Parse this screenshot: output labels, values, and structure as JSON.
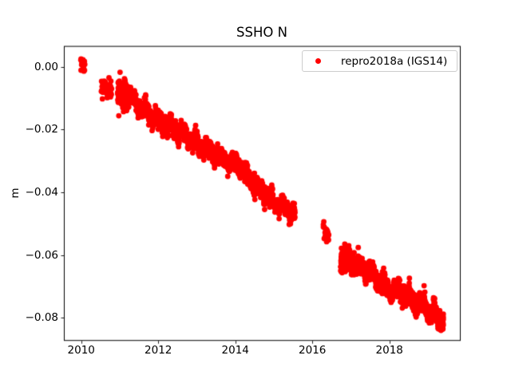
{
  "figure": {
    "background_color": "#ffffff",
    "text_color": "#000000",
    "spine_color": "#000000"
  },
  "chart_data": {
    "type": "scatter",
    "title": "SSHO N",
    "xlabel": "",
    "ylabel": "m",
    "grid": false,
    "legend_position": "upper right",
    "legend": [
      {
        "label": "repro2018a (IGS14)",
        "marker": "dot",
        "color": "#ff0000"
      }
    ],
    "xlim": [
      2009.55,
      2019.83
    ],
    "ylim": [
      -0.0874,
      0.0067
    ],
    "xticks": [
      2010,
      2012,
      2014,
      2016,
      2018
    ],
    "xtick_labels": [
      "2010",
      "2012",
      "2014",
      "2016",
      "2018"
    ],
    "yticks": [
      0.0,
      -0.02,
      -0.04,
      -0.06,
      -0.08
    ],
    "ytick_labels": [
      "0.00",
      "−0.02",
      "−0.04",
      "−0.06",
      "−0.08"
    ],
    "marker": {
      "shape": "circle",
      "color": "#ff0000",
      "radius_px": 3.4
    },
    "series": [
      {
        "name": "repro2018a (IGS14)",
        "color": "#ff0000",
        "units": "m",
        "description": "Daily north-component position residuals; rendered from segment envelopes read off the plot.",
        "segments": [
          {
            "t_start": 2009.99,
            "t_end": 2010.11,
            "n": 16,
            "anchors": [
              [
                2009.99,
                0.0015
              ],
              [
                2010.11,
                0.0003
              ]
            ],
            "sigma": 0.0011,
            "wiggle": 0
          },
          {
            "t_start": 2010.52,
            "t_end": 2010.79,
            "n": 55,
            "anchors": [
              [
                2010.52,
                -0.0062
              ],
              [
                2010.79,
                -0.008
              ]
            ],
            "sigma": 0.0015,
            "wiggle": 0.5
          },
          {
            "t_start": 2010.94,
            "t_end": 2015.55,
            "n": 1550,
            "anchors": [
              [
                2010.94,
                -0.008
              ],
              [
                2011.2,
                -0.009
              ],
              [
                2011.5,
                -0.0125
              ],
              [
                2012.0,
                -0.017
              ],
              [
                2012.5,
                -0.0205
              ],
              [
                2013.1,
                -0.025
              ],
              [
                2013.5,
                -0.028
              ],
              [
                2014.1,
                -0.0315
              ],
              [
                2014.6,
                -0.039
              ],
              [
                2015.0,
                -0.043
              ],
              [
                2015.3,
                -0.045
              ],
              [
                2015.55,
                -0.0465
              ]
            ],
            "sigma": 0.0013,
            "wiggle": 1
          },
          {
            "t_start": 2010.96,
            "t_end": 2011.22,
            "n": 140,
            "anchors": [
              [
                2010.96,
                -0.0082
              ],
              [
                2011.22,
                -0.009
              ]
            ],
            "sigma": 0.0022,
            "wiggle": 0.5
          },
          {
            "t_start": 2016.28,
            "t_end": 2016.44,
            "n": 26,
            "anchors": [
              [
                2016.28,
                -0.0522
              ],
              [
                2016.44,
                -0.0538
              ]
            ],
            "sigma": 0.0016,
            "wiggle": 0
          },
          {
            "t_start": 2016.73,
            "t_end": 2019.4,
            "n": 980,
            "anchors": [
              [
                2016.73,
                -0.0605
              ],
              [
                2017.0,
                -0.0622
              ],
              [
                2017.5,
                -0.0655
              ],
              [
                2018.0,
                -0.0712
              ],
              [
                2018.35,
                -0.0722
              ],
              [
                2018.7,
                -0.0748
              ],
              [
                2019.0,
                -0.0772
              ],
              [
                2019.2,
                -0.079
              ],
              [
                2019.4,
                -0.0812
              ]
            ],
            "sigma": 0.0014,
            "wiggle": 1
          },
          {
            "t_start": 2016.74,
            "t_end": 2016.95,
            "n": 90,
            "anchors": [
              [
                2016.74,
                -0.061
              ],
              [
                2016.95,
                -0.062
              ]
            ],
            "sigma": 0.002,
            "wiggle": 0.5
          }
        ],
        "outliers": [
          [
            2018.9,
            -0.0698
          ],
          [
            2018.99,
            -0.0809
          ]
        ]
      }
    ]
  }
}
